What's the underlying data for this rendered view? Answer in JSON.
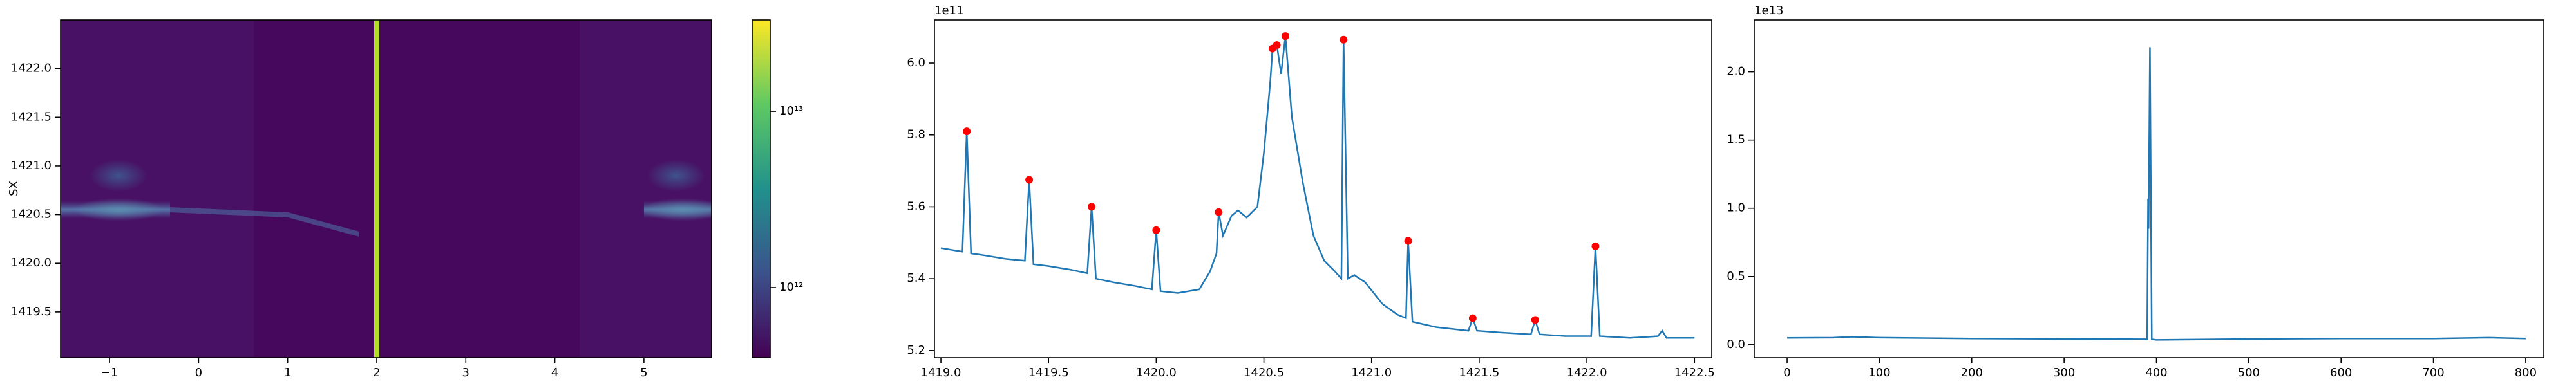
{
  "chart_data": [
    {
      "type": "heatmap",
      "ylabel": "SX",
      "xlim": [
        -1.55,
        5.76
      ],
      "ylim": [
        1419.03,
        1422.5
      ],
      "xticks": [
        {
          "value": -1,
          "label": "−1"
        },
        0,
        1,
        2,
        3,
        4,
        5
      ],
      "yticks": [
        1419.5,
        {
          "value": 1420.0,
          "label": "1420.0"
        },
        1420.5,
        {
          "value": 1421.0,
          "label": "1421.0"
        },
        1421.5,
        {
          "value": 1422.0,
          "label": "1422.0"
        }
      ],
      "highlight_x": 2,
      "highlight_color": "#b5de2b",
      "colorbar": {
        "scale": "log",
        "lim": [
          400000000000.0,
          33000000000000.0
        ],
        "ticks": [
          {
            "value": 1000000000000.0,
            "label": "10¹²"
          },
          {
            "value": 10000000000000.0,
            "label": "10¹³"
          }
        ]
      }
    },
    {
      "type": "line",
      "offset_label": "1e11",
      "xlim": [
        1418.97,
        1422.58
      ],
      "ylim": [
        5.18,
        6.12
      ],
      "xticks": [
        {
          "value": 1419.0,
          "label": "1419.0"
        },
        1419.5,
        {
          "value": 1420.0,
          "label": "1420.0"
        },
        1420.5,
        {
          "value": 1421.0,
          "label": "1421.0"
        },
        1421.5,
        {
          "value": 1422.0,
          "label": "1422.0"
        },
        1422.5
      ],
      "yticks": [
        5.2,
        5.4,
        5.6,
        5.8,
        {
          "value": 6.0,
          "label": "6.0"
        }
      ],
      "x": [
        1419.0,
        1419.05,
        1419.1,
        1419.12,
        1419.14,
        1419.2,
        1419.3,
        1419.39,
        1419.41,
        1419.43,
        1419.5,
        1419.6,
        1419.68,
        1419.7,
        1419.72,
        1419.8,
        1419.9,
        1419.98,
        1420.0,
        1420.02,
        1420.1,
        1420.2,
        1420.25,
        1420.28,
        1420.29,
        1420.31,
        1420.35,
        1420.38,
        1420.42,
        1420.47,
        1420.5,
        1420.53,
        1420.54,
        1420.56,
        1420.58,
        1420.6,
        1420.63,
        1420.68,
        1420.73,
        1420.78,
        1420.83,
        1420.86,
        1420.87,
        1420.89,
        1420.92,
        1420.97,
        1421.05,
        1421.12,
        1421.16,
        1421.17,
        1421.19,
        1421.3,
        1421.45,
        1421.47,
        1421.49,
        1421.6,
        1421.74,
        1421.76,
        1421.78,
        1421.9,
        1422.02,
        1422.04,
        1422.06,
        1422.2,
        1422.33,
        1422.35,
        1422.37,
        1422.5
      ],
      "series": [
        {
          "color": "#1f77b4",
          "values": [
            5.485,
            5.48,
            5.475,
            5.81,
            5.47,
            5.465,
            5.455,
            5.45,
            5.675,
            5.44,
            5.435,
            5.425,
            5.415,
            5.6,
            5.4,
            5.39,
            5.38,
            5.37,
            5.535,
            5.365,
            5.36,
            5.37,
            5.42,
            5.47,
            5.585,
            5.52,
            5.575,
            5.59,
            5.57,
            5.6,
            5.75,
            5.95,
            6.04,
            6.05,
            5.97,
            6.075,
            5.85,
            5.67,
            5.52,
            5.45,
            5.42,
            5.4,
            6.065,
            5.4,
            5.41,
            5.39,
            5.33,
            5.3,
            5.29,
            5.505,
            5.28,
            5.265,
            5.255,
            5.29,
            5.255,
            5.25,
            5.245,
            5.285,
            5.245,
            5.24,
            5.24,
            5.49,
            5.24,
            5.235,
            5.24,
            5.255,
            5.235,
            5.235
          ]
        }
      ],
      "markers": {
        "color": "#ff0000",
        "x": [
          1419.12,
          1419.41,
          1419.7,
          1420.0,
          1420.29,
          1420.54,
          1420.56,
          1420.6,
          1420.87,
          1421.17,
          1421.47,
          1421.76,
          1422.04
        ],
        "values": [
          5.81,
          5.675,
          5.6,
          5.535,
          5.585,
          6.04,
          6.05,
          6.075,
          6.065,
          5.505,
          5.29,
          5.285,
          5.49
        ]
      }
    },
    {
      "type": "line",
      "offset_label": "1e13",
      "xlim": [
        -35.6,
        819.6
      ],
      "ylim": [
        -0.095,
        2.38
      ],
      "xticks": [
        0,
        100,
        200,
        300,
        400,
        500,
        600,
        700,
        800
      ],
      "yticks": [
        {
          "value": 0,
          "label": "0.0"
        },
        0.5,
        {
          "value": 1,
          "label": "1.0"
        },
        1.5,
        {
          "value": 2,
          "label": "2.0"
        }
      ],
      "x": [
        0,
        50,
        70,
        100,
        200,
        300,
        385,
        390,
        391,
        391.5,
        393,
        395,
        400,
        500,
        600,
        700,
        760,
        800
      ],
      "series": [
        {
          "color": "#1f77b4",
          "values": [
            0.05,
            0.052,
            0.058,
            0.052,
            0.045,
            0.042,
            0.04,
            0.04,
            1.07,
            0.85,
            2.18,
            0.04,
            0.035,
            0.042,
            0.045,
            0.045,
            0.052,
            0.045
          ]
        }
      ]
    }
  ]
}
